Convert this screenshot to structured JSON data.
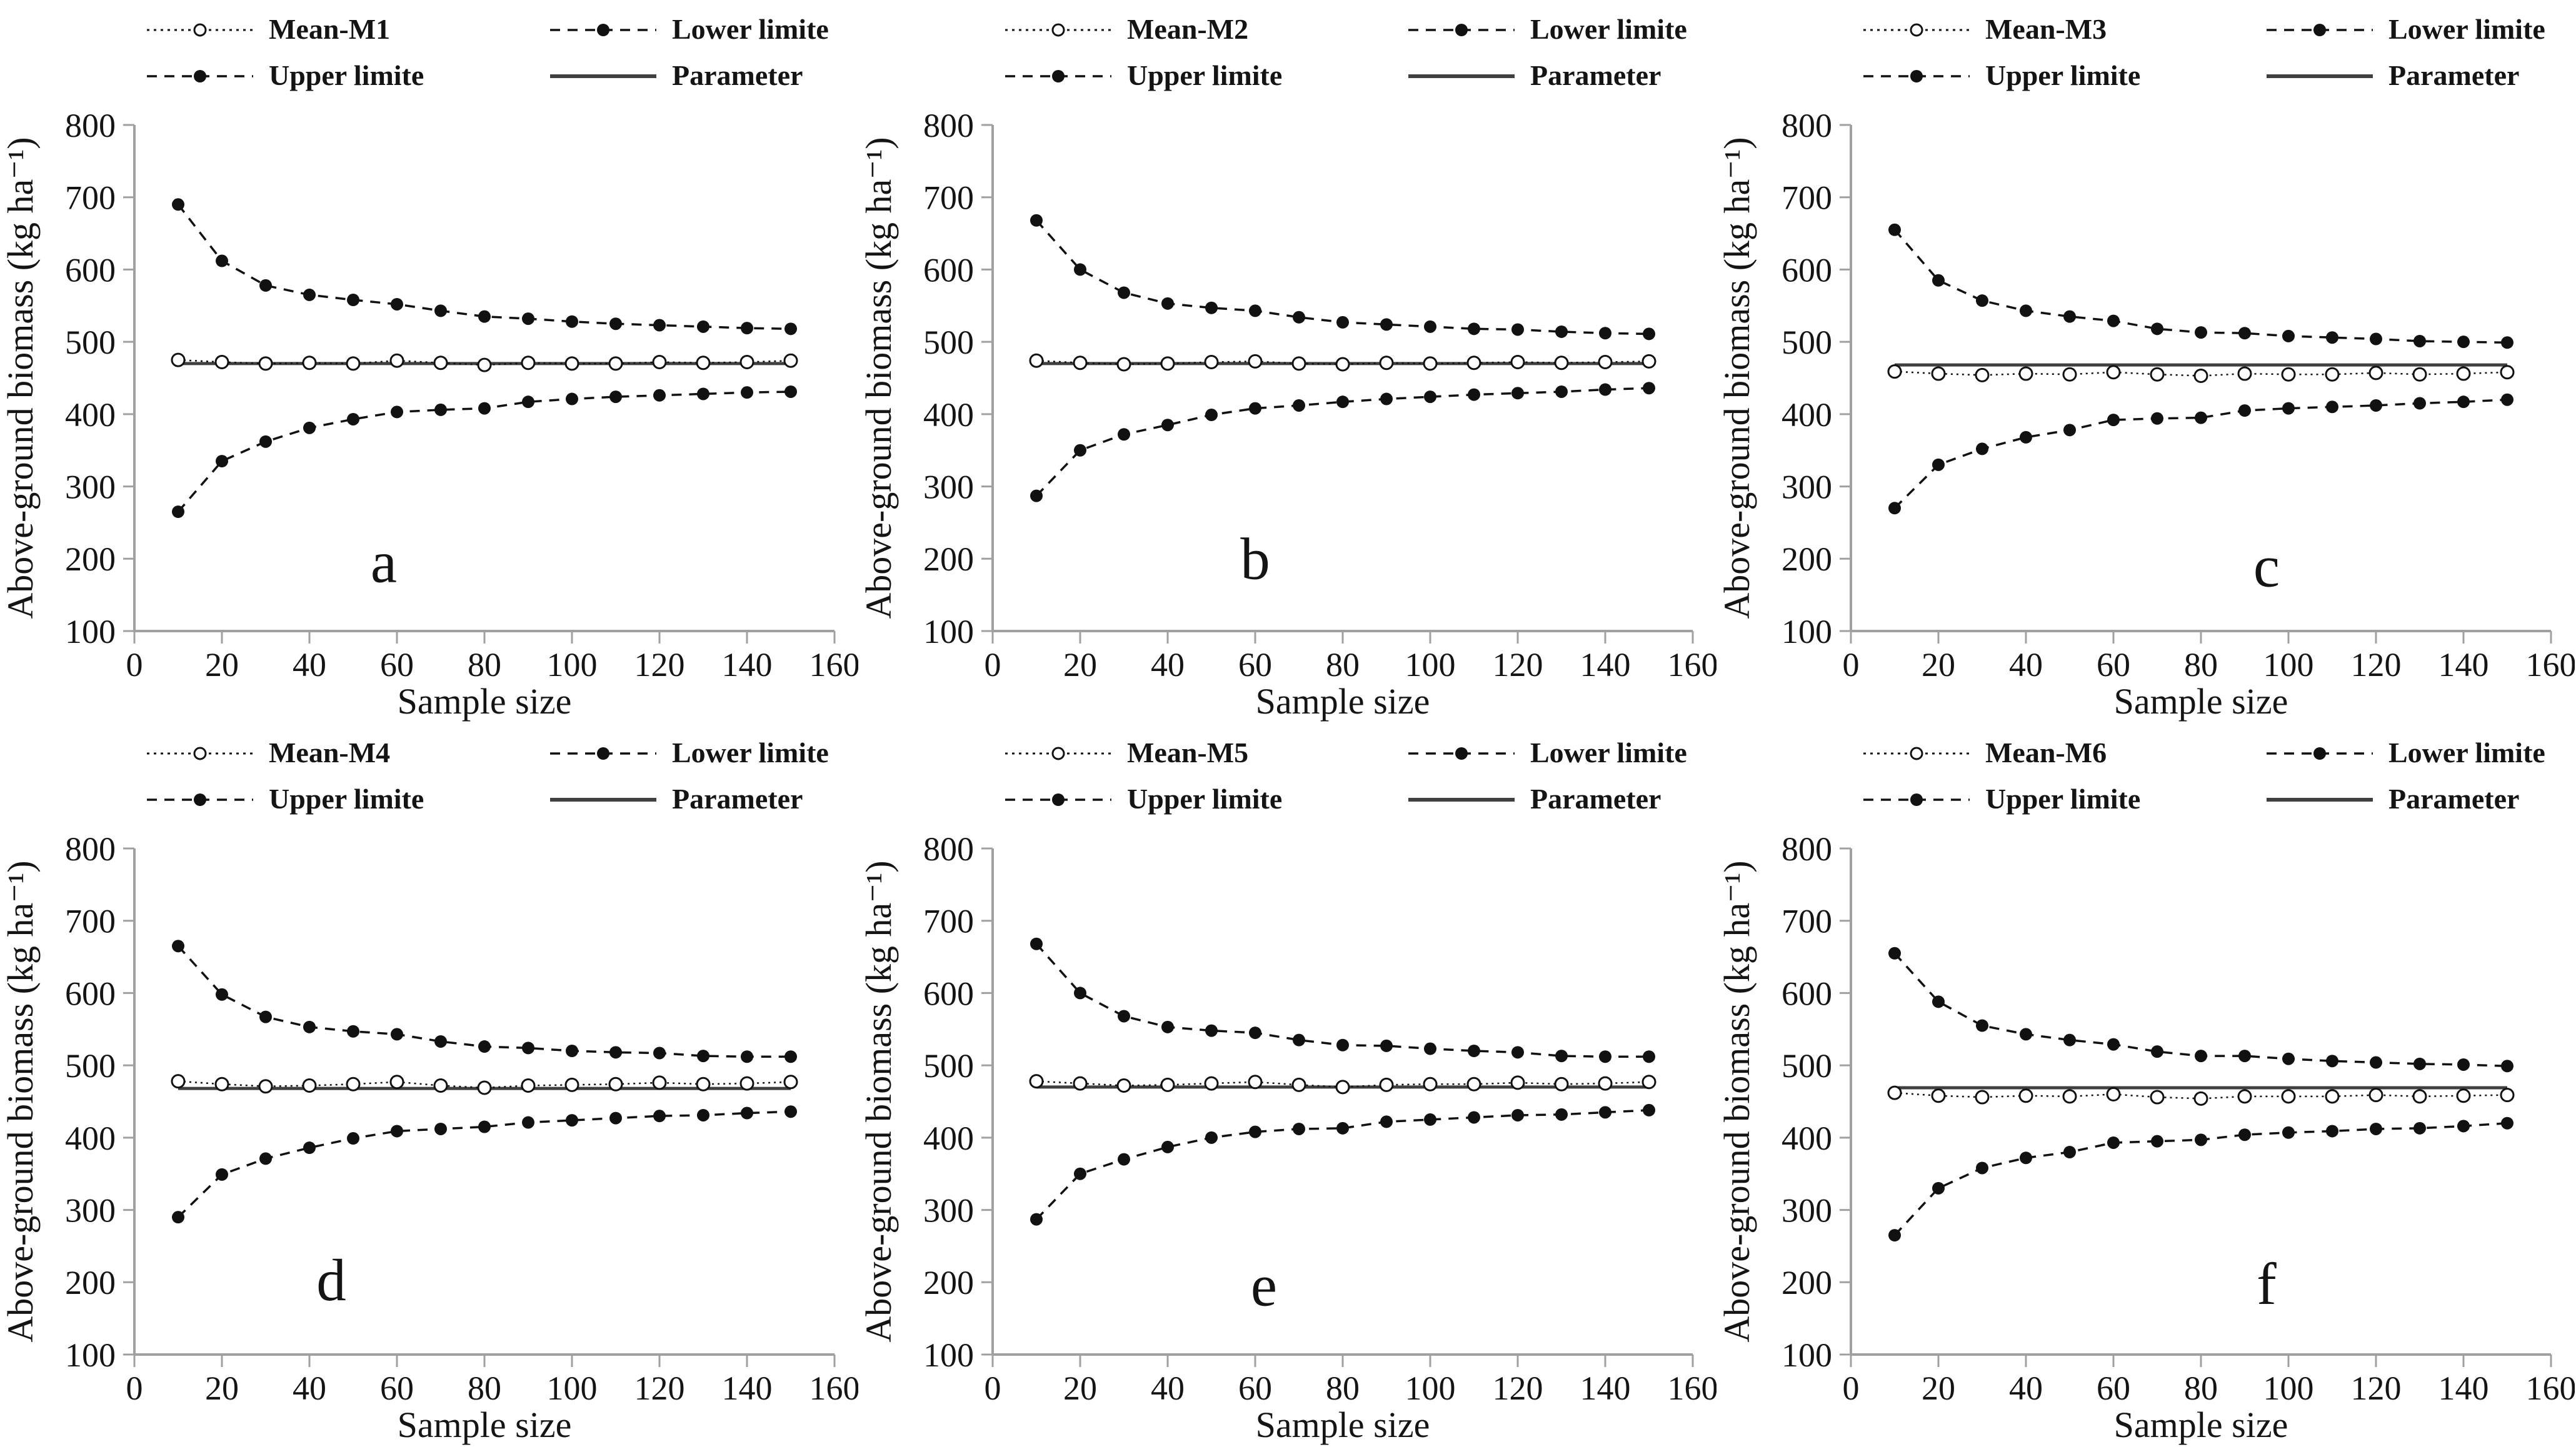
{
  "figure": {
    "background": "#ffffff",
    "text_color": "#141414",
    "series_color": "#111111",
    "parameter_color": "#3f3f3f",
    "axis_color": "#a0a0a0"
  },
  "chart_data": [
    {
      "type": "line",
      "panel_label": "a",
      "label_pos": {
        "x": 57,
        "y": 168
      },
      "xlabel": "Sample size",
      "ylabel": "Above-ground biomass (kg ha⁻¹)",
      "xlim": [
        0,
        160
      ],
      "ylim": [
        100,
        800
      ],
      "xticks": [
        0,
        20,
        40,
        60,
        80,
        100,
        120,
        140,
        160
      ],
      "yticks": [
        100,
        200,
        300,
        400,
        500,
        600,
        700,
        800
      ],
      "legend_position": "top",
      "grid": false,
      "x": [
        10,
        20,
        30,
        40,
        50,
        60,
        70,
        80,
        90,
        100,
        110,
        120,
        130,
        140,
        150
      ],
      "series": [
        {
          "name": "Mean-M1",
          "style": "mean",
          "values": [
            475,
            472,
            470,
            471,
            470,
            474,
            471,
            468,
            471,
            470,
            470,
            472,
            471,
            472,
            474
          ]
        },
        {
          "name": "Lower limite",
          "style": "limit",
          "values": [
            265,
            335,
            362,
            381,
            393,
            403,
            406,
            408,
            417,
            421,
            424,
            426,
            428,
            430,
            431
          ]
        },
        {
          "name": "Upper limite",
          "style": "limit",
          "values": [
            690,
            612,
            578,
            565,
            558,
            552,
            543,
            535,
            532,
            528,
            525,
            523,
            521,
            519,
            518
          ]
        },
        {
          "name": "Parameter",
          "style": "param",
          "value": 470
        }
      ]
    },
    {
      "type": "line",
      "panel_label": "b",
      "label_pos": {
        "x": 60,
        "y": 172
      },
      "xlabel": "Sample size",
      "ylabel": "Above-ground biomass (kg ha⁻¹)",
      "xlim": [
        0,
        160
      ],
      "ylim": [
        100,
        800
      ],
      "xticks": [
        0,
        20,
        40,
        60,
        80,
        100,
        120,
        140,
        160
      ],
      "yticks": [
        100,
        200,
        300,
        400,
        500,
        600,
        700,
        800
      ],
      "legend_position": "top",
      "grid": false,
      "x": [
        10,
        20,
        30,
        40,
        50,
        60,
        70,
        80,
        90,
        100,
        110,
        120,
        130,
        140,
        150
      ],
      "series": [
        {
          "name": "Mean-M2",
          "style": "mean",
          "values": [
            474,
            471,
            469,
            470,
            472,
            473,
            470,
            469,
            471,
            470,
            471,
            472,
            471,
            472,
            473
          ]
        },
        {
          "name": "Lower limite",
          "style": "limit",
          "values": [
            287,
            350,
            372,
            385,
            399,
            408,
            412,
            417,
            421,
            424,
            427,
            429,
            431,
            434,
            436
          ]
        },
        {
          "name": "Upper limite",
          "style": "limit",
          "values": [
            668,
            600,
            568,
            553,
            547,
            543,
            534,
            527,
            524,
            521,
            518,
            517,
            514,
            512,
            511
          ]
        },
        {
          "name": "Parameter",
          "style": "param",
          "value": 470
        }
      ]
    },
    {
      "type": "line",
      "panel_label": "c",
      "label_pos": {
        "x": 95,
        "y": 162
      },
      "xlabel": "Sample size",
      "ylabel": "Above-ground biomass (kg ha⁻¹)",
      "xlim": [
        0,
        160
      ],
      "ylim": [
        100,
        800
      ],
      "xticks": [
        0,
        20,
        40,
        60,
        80,
        100,
        120,
        140,
        160
      ],
      "yticks": [
        100,
        200,
        300,
        400,
        500,
        600,
        700,
        800
      ],
      "legend_position": "top",
      "grid": false,
      "x": [
        10,
        20,
        30,
        40,
        50,
        60,
        70,
        80,
        90,
        100,
        110,
        120,
        130,
        140,
        150
      ],
      "series": [
        {
          "name": "Mean-M3",
          "style": "mean",
          "values": [
            459,
            456,
            454,
            456,
            455,
            458,
            455,
            453,
            456,
            455,
            455,
            457,
            455,
            456,
            458
          ]
        },
        {
          "name": "Lower limite",
          "style": "limit",
          "values": [
            270,
            330,
            352,
            368,
            378,
            392,
            394,
            395,
            405,
            408,
            410,
            412,
            415,
            417,
            420
          ]
        },
        {
          "name": "Upper limite",
          "style": "limit",
          "values": [
            655,
            585,
            557,
            543,
            535,
            529,
            518,
            513,
            512,
            508,
            506,
            504,
            501,
            500,
            499
          ]
        },
        {
          "name": "Parameter",
          "style": "param",
          "value": 468
        }
      ]
    },
    {
      "type": "line",
      "panel_label": "d",
      "label_pos": {
        "x": 45,
        "y": 175
      },
      "xlabel": "Sample size",
      "ylabel": "Above-ground biomass (kg ha⁻¹)",
      "xlim": [
        0,
        160
      ],
      "ylim": [
        100,
        800
      ],
      "xticks": [
        0,
        20,
        40,
        60,
        80,
        100,
        120,
        140,
        160
      ],
      "yticks": [
        100,
        200,
        300,
        400,
        500,
        600,
        700,
        800
      ],
      "legend_position": "top",
      "grid": false,
      "x": [
        10,
        20,
        30,
        40,
        50,
        60,
        70,
        80,
        90,
        100,
        110,
        120,
        130,
        140,
        150
      ],
      "series": [
        {
          "name": "Mean-M4",
          "style": "mean",
          "values": [
            478,
            474,
            471,
            472,
            474,
            477,
            472,
            469,
            472,
            473,
            474,
            476,
            474,
            475,
            477
          ]
        },
        {
          "name": "Lower limite",
          "style": "limit",
          "values": [
            290,
            349,
            371,
            386,
            399,
            409,
            412,
            415,
            421,
            424,
            427,
            430,
            431,
            434,
            436
          ]
        },
        {
          "name": "Upper limite",
          "style": "limit",
          "values": [
            665,
            598,
            567,
            553,
            547,
            543,
            533,
            526,
            524,
            520,
            518,
            517,
            513,
            512,
            512
          ]
        },
        {
          "name": "Parameter",
          "style": "param",
          "value": 468
        }
      ]
    },
    {
      "type": "line",
      "panel_label": "e",
      "label_pos": {
        "x": 62,
        "y": 168
      },
      "xlabel": "Sample size",
      "ylabel": "Above-ground biomass (kg ha⁻¹)",
      "xlim": [
        0,
        160
      ],
      "ylim": [
        100,
        800
      ],
      "xticks": [
        0,
        20,
        40,
        60,
        80,
        100,
        120,
        140,
        160
      ],
      "yticks": [
        100,
        200,
        300,
        400,
        500,
        600,
        700,
        800
      ],
      "legend_position": "top",
      "grid": false,
      "x": [
        10,
        20,
        30,
        40,
        50,
        60,
        70,
        80,
        90,
        100,
        110,
        120,
        130,
        140,
        150
      ],
      "series": [
        {
          "name": "Mean-M5",
          "style": "mean",
          "values": [
            478,
            475,
            472,
            473,
            475,
            477,
            473,
            470,
            473,
            474,
            474,
            476,
            474,
            475,
            477
          ]
        },
        {
          "name": "Lower limite",
          "style": "limit",
          "values": [
            287,
            350,
            370,
            387,
            400,
            408,
            412,
            413,
            422,
            425,
            428,
            431,
            432,
            435,
            438
          ]
        },
        {
          "name": "Upper limite",
          "style": "limit",
          "values": [
            668,
            600,
            568,
            553,
            548,
            545,
            535,
            528,
            527,
            523,
            520,
            518,
            513,
            512,
            512
          ]
        },
        {
          "name": "Parameter",
          "style": "param",
          "value": 470
        }
      ]
    },
    {
      "type": "line",
      "panel_label": "f",
      "label_pos": {
        "x": 95,
        "y": 170
      },
      "xlabel": "Sample size",
      "ylabel": "Above-ground biomass (kg ha⁻¹)",
      "xlim": [
        0,
        160
      ],
      "ylim": [
        100,
        800
      ],
      "xticks": [
        0,
        20,
        40,
        60,
        80,
        100,
        120,
        140,
        160
      ],
      "yticks": [
        100,
        200,
        300,
        400,
        500,
        600,
        700,
        800
      ],
      "legend_position": "top",
      "grid": false,
      "x": [
        10,
        20,
        30,
        40,
        50,
        60,
        70,
        80,
        90,
        100,
        110,
        120,
        130,
        140,
        150
      ],
      "series": [
        {
          "name": "Mean-M6",
          "style": "mean",
          "values": [
            462,
            458,
            456,
            458,
            457,
            460,
            456,
            454,
            457,
            457,
            457,
            459,
            457,
            458,
            459
          ]
        },
        {
          "name": "Lower limite",
          "style": "limit",
          "values": [
            265,
            330,
            358,
            372,
            380,
            393,
            395,
            397,
            404,
            407,
            409,
            412,
            413,
            416,
            420
          ]
        },
        {
          "name": "Upper limite",
          "style": "limit",
          "values": [
            655,
            588,
            555,
            543,
            535,
            529,
            519,
            513,
            513,
            509,
            506,
            504,
            502,
            501,
            499
          ]
        },
        {
          "name": "Parameter",
          "style": "param",
          "value": 469
        }
      ]
    }
  ]
}
